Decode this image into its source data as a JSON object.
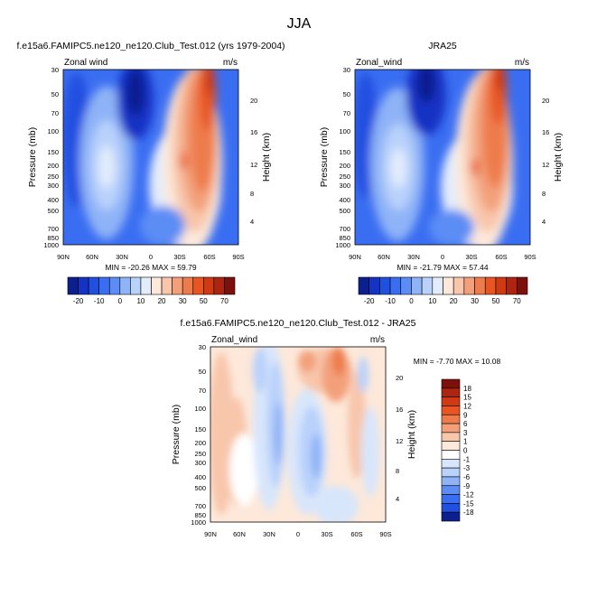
{
  "title": "JJA",
  "chart_data": [
    {
      "type": "heatmap",
      "title": "f.e15a6.FAMIPC5.ne120_ne120.Club_Test.012 (yrs 1979-2004)",
      "left_label": "Zonal wind",
      "right_label": "m/s",
      "ylabel": "Pressure (mb)",
      "ylabel_right": "Height (km)",
      "x_ticks": [
        "90N",
        "60N",
        "30N",
        "0",
        "30S",
        "60S",
        "90S"
      ],
      "y_ticks": [
        "30",
        "50",
        "70",
        "100",
        "150",
        "200",
        "250",
        "300",
        "400",
        "500",
        "700",
        "850",
        "1000"
      ],
      "y_ticks_right": [
        "4",
        "8",
        "12",
        "16",
        "20"
      ],
      "stats": "MIN = -20.26  MAX = 59.79",
      "min": -20.26,
      "max": 59.79,
      "colorbar": {
        "orientation": "horizontal",
        "labels": [
          "-20",
          "-10",
          "0",
          "10",
          "20",
          "30",
          "50",
          "70"
        ],
        "colors": [
          "#0c1f8e",
          "#1432c4",
          "#2050e0",
          "#3a6ef2",
          "#5b8df5",
          "#8fb3f7",
          "#b9d2fb",
          "#e3ecfb",
          "#fde8da",
          "#f8c6ab",
          "#f3a07a",
          "#ee7b4c",
          "#e85522",
          "#cf3a14",
          "#ad2410",
          "#7e100b"
        ]
      }
    },
    {
      "type": "heatmap",
      "title": "JRA25",
      "left_label": "Zonal_wind",
      "right_label": "m/s",
      "ylabel": "Pressure (mb)",
      "ylabel_right": "Height (km)",
      "x_ticks": [
        "90N",
        "60N",
        "30N",
        "0",
        "30S",
        "60S",
        "90S"
      ],
      "y_ticks": [
        "30",
        "50",
        "70",
        "100",
        "150",
        "200",
        "250",
        "300",
        "400",
        "500",
        "700",
        "850",
        "1000"
      ],
      "y_ticks_right": [
        "4",
        "8",
        "12",
        "16",
        "20"
      ],
      "stats": "MIN = -21.79  MAX = 57.44",
      "min": -21.79,
      "max": 57.44,
      "colorbar": {
        "orientation": "horizontal",
        "labels": [
          "-20",
          "-10",
          "0",
          "10",
          "20",
          "30",
          "50",
          "70"
        ],
        "colors": [
          "#0c1f8e",
          "#1432c4",
          "#2050e0",
          "#3a6ef2",
          "#5b8df5",
          "#8fb3f7",
          "#b9d2fb",
          "#e3ecfb",
          "#fde8da",
          "#f8c6ab",
          "#f3a07a",
          "#ee7b4c",
          "#e85522",
          "#cf3a14",
          "#ad2410",
          "#7e100b"
        ]
      }
    },
    {
      "type": "heatmap",
      "title": "f.e15a6.FAMIPC5.ne120_ne120.Club_Test.012 - JRA25",
      "left_label": "Zonal_wind",
      "right_label": "m/s",
      "ylabel": "Pressure (mb)",
      "ylabel_right": "Height (km)",
      "x_ticks": [
        "90N",
        "60N",
        "30N",
        "0",
        "30S",
        "60S",
        "90S"
      ],
      "y_ticks": [
        "30",
        "50",
        "70",
        "100",
        "150",
        "200",
        "250",
        "300",
        "400",
        "500",
        "700",
        "850",
        "1000"
      ],
      "y_ticks_right": [
        "4",
        "8",
        "12",
        "16",
        "20"
      ],
      "stats": "MIN = -7.70  MAX = 10.08",
      "min": -7.7,
      "max": 10.08,
      "colorbar": {
        "orientation": "vertical",
        "labels": [
          "18",
          "15",
          "12",
          "9",
          "6",
          "3",
          "1",
          "0",
          "-1",
          "-3",
          "-6",
          "-9",
          "-12",
          "-15",
          "-18"
        ],
        "colors": [
          "#7e100b",
          "#ad2410",
          "#cf3a14",
          "#e85522",
          "#ee7b4c",
          "#f3a07a",
          "#f8c6ab",
          "#fde8da",
          "#ffffff",
          "#d8e6fb",
          "#b9d2fb",
          "#8fb3f7",
          "#5b8df5",
          "#3a6ef2",
          "#2050e0",
          "#0c1f8e"
        ]
      }
    }
  ]
}
